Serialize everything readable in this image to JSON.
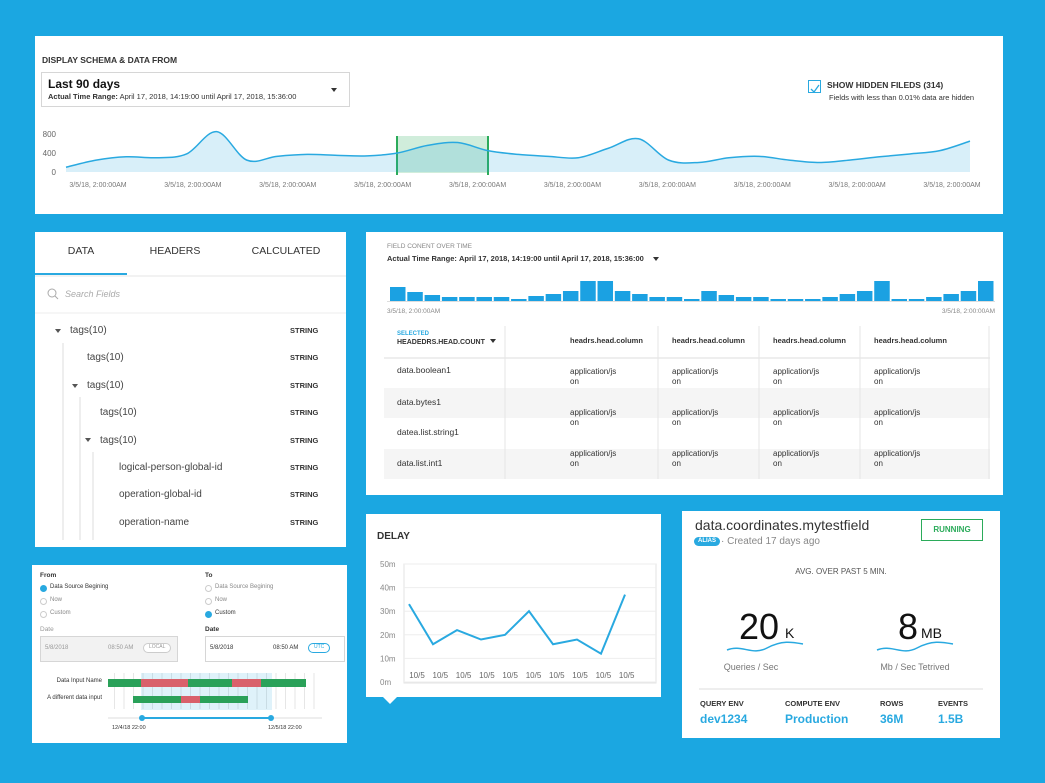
{
  "schema_panel": {
    "heading": "DISPLAY SCHEMA & DATA FROM",
    "range": {
      "title": "Last 90 days",
      "label": "Actual Time Range:",
      "value": "April 17, 2018, 14:19:00 until April 17, 2018, 15:36:00"
    },
    "hidden_fields": {
      "label": "SHOW HIDDEN FILEDS (314)",
      "note": "Fields with less than 0.01% data are hidden"
    },
    "chart": {
      "type": "area",
      "x_labels": [
        "3/5/18, 2:00:00AM",
        "3/5/18, 2:00:00AM",
        "3/5/18, 2:00:00AM",
        "3/5/18, 2:00:00AM",
        "3/5/18, 2:00:00AM",
        "3/5/18, 2:00:00AM",
        "3/5/18, 2:00:00AM",
        "3/5/18, 2:00:00AM",
        "3/5/18, 2:00:00AM",
        "3/5/18, 2:00:00AM"
      ],
      "values": [
        100,
        250,
        320,
        300,
        380,
        850,
        250,
        330,
        370,
        350,
        340,
        400,
        560,
        620,
        450,
        370,
        330,
        300,
        500,
        700,
        250,
        200,
        300,
        330,
        250,
        200,
        250,
        320,
        380,
        450,
        650
      ],
      "ylim": [
        0,
        800
      ],
      "yticks": [
        0,
        400,
        800
      ],
      "color": "#29a9e0"
    }
  },
  "fields_panel": {
    "tabs": [
      "DATA",
      "HEADERS",
      "CALCULATED"
    ],
    "search_placeholder": "Search Fields",
    "rows": [
      {
        "label": "tags(10)",
        "type": "STRING"
      },
      {
        "label": "tags(10)",
        "type": "STRING"
      },
      {
        "label": "tags(10)",
        "type": "STRING"
      },
      {
        "label": "tags(10)",
        "type": "STRING"
      },
      {
        "label": "tags(10)",
        "type": "STRING"
      },
      {
        "label": "logical-person-global-id",
        "type": "STRING"
      },
      {
        "label": "operation-global-id",
        "type": "STRING"
      },
      {
        "label": "operation-name",
        "type": "STRING"
      }
    ]
  },
  "content_panel": {
    "title": "FIELD CONENT OVER TIME",
    "range": {
      "label": "Actual Time Range:",
      "value": "April 17, 2018, 14:19:00 until April 17, 2018, 15:36:00"
    },
    "chart": {
      "type": "bar",
      "values": [
        14,
        9,
        6,
        4,
        4,
        4,
        4,
        2,
        5,
        7,
        10,
        20,
        20,
        10,
        7,
        4,
        4,
        2,
        10,
        6,
        4,
        4,
        2,
        2,
        2,
        4,
        7,
        10,
        20,
        2,
        2,
        4,
        7,
        10,
        20
      ],
      "ylim": [
        0,
        20
      ],
      "x_labels": [
        "3/5/18, 2:00:00AM",
        "3/5/18, 2:00:00AM"
      ],
      "color": "#1ba1e2"
    },
    "table": {
      "selected_label": "SELECTED",
      "selected_column": "HEADEDRS.HEAD.COUNT",
      "columns": [
        "headrs.head.column",
        "headrs.head.column",
        "headrs.head.column",
        "headrs.head.column"
      ],
      "rows": [
        {
          "name": "data.boolean1",
          "cells": [
            "application/json",
            "application/json",
            "application/json",
            "application/json"
          ]
        },
        {
          "name": "data.bytes1",
          "cells": [
            "application/json",
            "application/json",
            "application/json",
            "application/json"
          ]
        },
        {
          "name": "datea.list.string1",
          "cells": []
        },
        {
          "name": "data.list.int1",
          "cells": [
            "application/json",
            "application/json",
            "application/json",
            "application/json"
          ]
        }
      ]
    }
  },
  "delay_panel": {
    "chart": {
      "type": "line",
      "title": "DELAY",
      "categories": [
        "10/5",
        "10/5",
        "10/5",
        "10/5",
        "10/5",
        "10/5",
        "10/5",
        "10/5",
        "10/5",
        "10/5"
      ],
      "values": [
        33,
        16,
        22,
        18,
        20,
        30,
        16,
        18,
        12,
        37
      ],
      "ylim": [
        0,
        50
      ],
      "yticks": [
        {
          "value": 0,
          "label": "0m"
        },
        {
          "value": 10,
          "label": "10m"
        },
        {
          "value": 20,
          "label": "20m"
        },
        {
          "value": 30,
          "label": "30m"
        },
        {
          "value": 40,
          "label": "40m"
        },
        {
          "value": 50,
          "label": "50m"
        }
      ],
      "color": "#29a9e0"
    }
  },
  "field_card": {
    "name": "data.coordinates.mytestfield",
    "badge": "ALIAS",
    "created": "Created 17 days ago",
    "status": "RUNNING",
    "avg_label": "AVG. OVER PAST 5 MIN.",
    "stats": [
      {
        "value": 20,
        "unit": "K",
        "label": "Queries / Sec"
      },
      {
        "value": 8,
        "unit": "MB",
        "label": "Mb / Sec Tetrived"
      }
    ],
    "details": [
      {
        "label": "QUERY ENV",
        "value": "dev1234"
      },
      {
        "label": "COMPUTE ENV",
        "value": "Production"
      },
      {
        "label": "ROWS",
        "value": "36M"
      },
      {
        "label": "EVENTS",
        "value": "1.5B"
      }
    ]
  },
  "timeline_panel": {
    "from": {
      "label": "From",
      "options": [
        "Data Source Begining",
        "Now",
        "Custom"
      ],
      "date_label": "Date",
      "date": "5/8/2018",
      "time": "08:50 AM",
      "zone": "LOCAL"
    },
    "to": {
      "label": "To",
      "options": [
        "Data Source Begining",
        "Now",
        "Custom"
      ],
      "date_label": "Date",
      "date": "5/8/2018",
      "time": "08:50 AM",
      "zone": "UTC"
    },
    "inputs": [
      "Data Input Name",
      "A different data input"
    ],
    "range_labels": [
      "12/4/18 22:00",
      "12/5/18 22:00"
    ]
  }
}
